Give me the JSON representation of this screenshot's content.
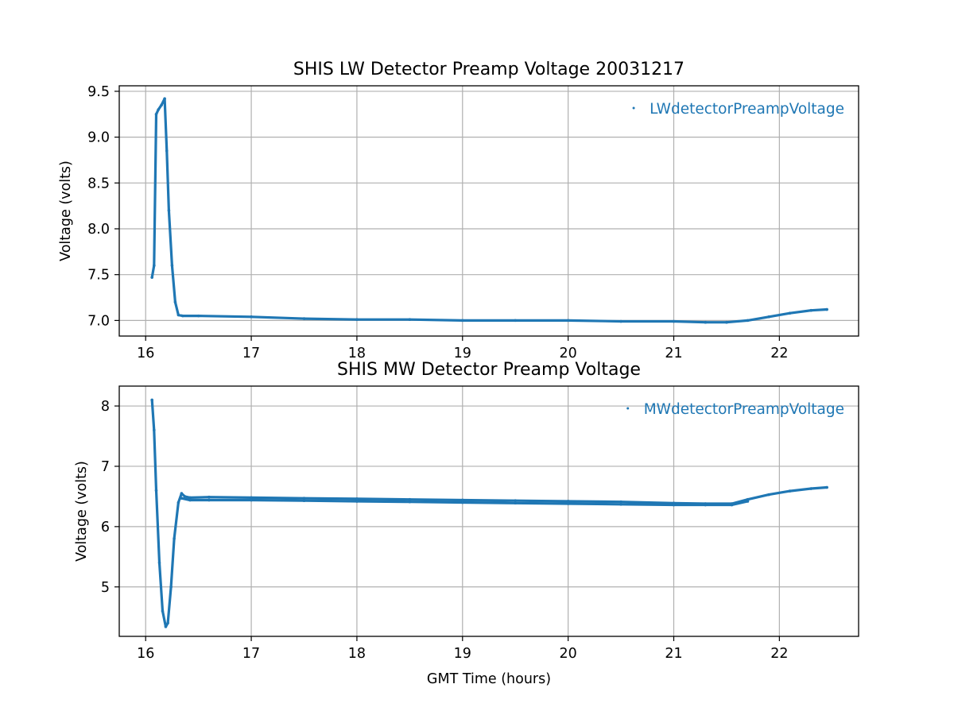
{
  "chart_data": [
    {
      "type": "scatter",
      "title": "SHIS LW Detector Preamp Voltage 20031217",
      "xlabel": "",
      "ylabel": "Voltage (volts)",
      "xlim": [
        15.75,
        22.75
      ],
      "ylim": [
        6.83,
        9.56
      ],
      "xticks": [
        16,
        17,
        18,
        19,
        20,
        21,
        22
      ],
      "xtick_labels": [
        "16",
        "17",
        "18",
        "19",
        "20",
        "21",
        "22"
      ],
      "yticks": [
        7.0,
        7.5,
        8.0,
        8.5,
        9.0,
        9.5
      ],
      "ytick_labels": [
        "7.0",
        "7.5",
        "8.0",
        "8.5",
        "9.0",
        "9.5"
      ],
      "grid": true,
      "legend": "top-right",
      "series": [
        {
          "name": "LWdetectorPreampVoltage",
          "color": "#1f77b4",
          "marker": "point",
          "x": [
            16.06,
            16.08,
            16.1,
            16.12,
            16.15,
            16.18,
            16.2,
            16.22,
            16.25,
            16.28,
            16.31,
            16.35,
            16.5,
            17.0,
            17.5,
            18.0,
            18.5,
            19.0,
            19.5,
            20.0,
            20.5,
            21.0,
            21.3,
            21.5,
            21.7,
            21.9,
            22.1,
            22.3,
            22.45
          ],
          "y": [
            7.47,
            7.6,
            9.25,
            9.3,
            9.35,
            9.42,
            8.85,
            8.2,
            7.6,
            7.2,
            7.06,
            7.05,
            7.05,
            7.04,
            7.02,
            7.01,
            7.01,
            7.0,
            7.0,
            7.0,
            6.99,
            6.99,
            6.98,
            6.98,
            7.0,
            7.04,
            7.08,
            7.11,
            7.12
          ]
        }
      ]
    },
    {
      "type": "scatter",
      "title": "SHIS MW Detector Preamp Voltage",
      "xlabel": "GMT Time (hours)",
      "ylabel": "Voltage (volts)",
      "xlim": [
        15.75,
        22.75
      ],
      "ylim": [
        4.18,
        8.33
      ],
      "xticks": [
        16,
        17,
        18,
        19,
        20,
        21,
        22
      ],
      "xtick_labels": [
        "16",
        "17",
        "18",
        "19",
        "20",
        "21",
        "22"
      ],
      "yticks": [
        5,
        6,
        7,
        8
      ],
      "ytick_labels": [
        "5",
        "6",
        "7",
        "8"
      ],
      "grid": true,
      "legend": "top-right",
      "series": [
        {
          "name": "MWdetectorPreampVoltage",
          "color": "#1f77b4",
          "marker": "point",
          "x": [
            16.06,
            16.08,
            16.1,
            16.13,
            16.16,
            16.19,
            16.21,
            16.24,
            16.27,
            16.31,
            16.34,
            16.37,
            16.42,
            16.6,
            17.0,
            17.5,
            18.0,
            18.5,
            19.0,
            19.5,
            20.0,
            20.5,
            21.0,
            21.3,
            21.55,
            21.7,
            21.9,
            22.1,
            22.3,
            22.45
          ],
          "y": [
            8.1,
            7.6,
            6.6,
            5.4,
            4.6,
            4.34,
            4.4,
            5.0,
            5.8,
            6.4,
            6.55,
            6.5,
            6.48,
            6.49,
            6.48,
            6.47,
            6.46,
            6.45,
            6.44,
            6.43,
            6.42,
            6.41,
            6.39,
            6.38,
            6.38,
            6.45,
            6.53,
            6.59,
            6.63,
            6.65
          ]
        },
        {
          "name": "",
          "color": "#1f77b4",
          "marker": "point",
          "x": [
            16.34,
            16.42,
            16.6,
            17.0,
            17.5,
            18.0,
            18.5,
            19.0,
            19.5,
            20.0,
            20.5,
            21.0,
            21.3,
            21.55,
            21.7
          ],
          "y": [
            6.47,
            6.44,
            6.44,
            6.44,
            6.43,
            6.42,
            6.41,
            6.4,
            6.39,
            6.38,
            6.37,
            6.36,
            6.36,
            6.36,
            6.42
          ]
        }
      ]
    }
  ]
}
